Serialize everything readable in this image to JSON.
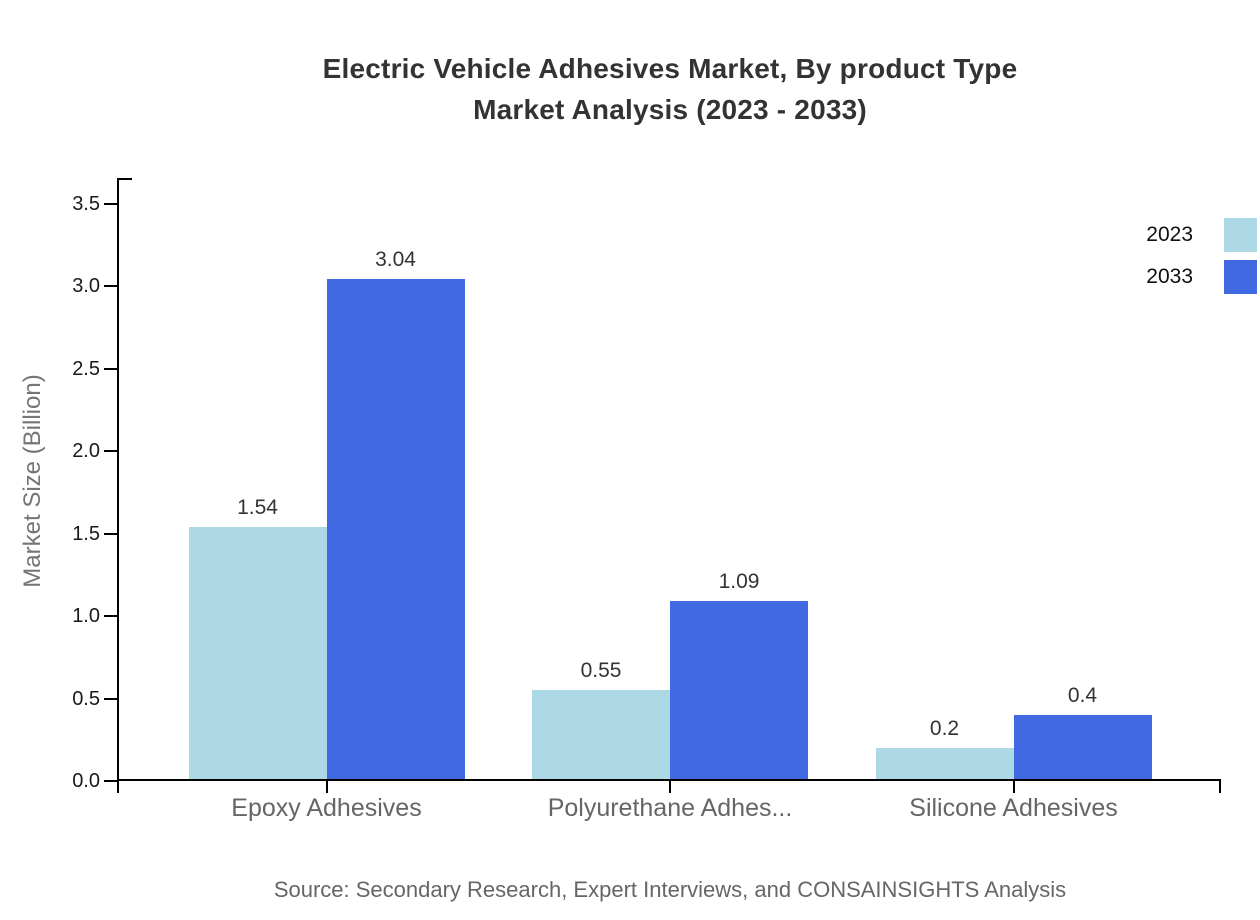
{
  "page": {
    "title_line1": "Electric Vehicle Adhesives Market, By product Type",
    "title_line2": "Market Analysis (2023 - 2033)",
    "source_note": "Source: Secondary Research, Expert Interviews, and CONSAINSIGHTS Analysis"
  },
  "chart_data": {
    "type": "bar",
    "title": "Electric Vehicle Adhesives Market, By product Type Market Analysis (2023 - 2033)",
    "categories": [
      "Epoxy Adhesives",
      "Polyurethane Adhes...",
      "Silicone Adhesives"
    ],
    "series": [
      {
        "name": "2023",
        "color": "#ADD8E6",
        "values": [
          1.54,
          0.55,
          0.2
        ]
      },
      {
        "name": "2033",
        "color": "#4169E1",
        "values": [
          3.04,
          1.09,
          0.4
        ]
      }
    ],
    "xlabel": "",
    "ylabel": "Market Size (Billion)",
    "ylim": [
      0,
      3.5
    ],
    "ytick_step": 0.5,
    "ytick_decimals": 1,
    "grid": false,
    "legend_position": "top-right",
    "value_labels_shown": true,
    "colors": {
      "axis": "#000000",
      "title_text": "#333333",
      "ytick_text": "#1a1a1a",
      "category_text": "#666666",
      "value_label_text": "#333333",
      "axis_title_text": "#757575",
      "legend_text": "#111111",
      "source_text": "#666666"
    }
  }
}
